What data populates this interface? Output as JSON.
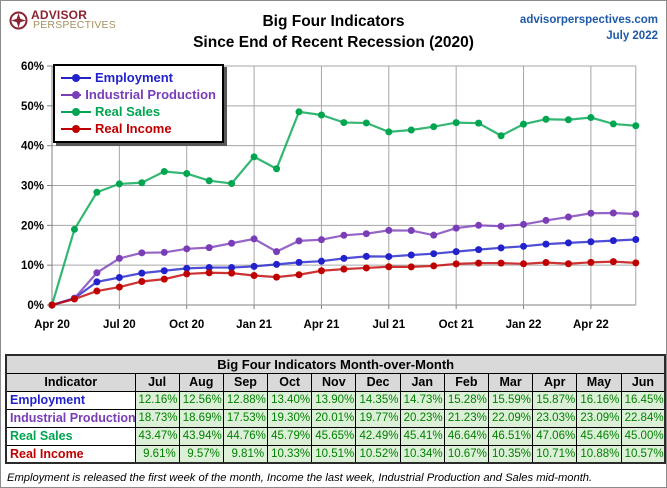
{
  "header": {
    "logo_line1": "ADVISOR",
    "logo_line2": "PERSPECTIVES",
    "logo_color1": "#8c2332",
    "logo_color2": "#a5925f",
    "title_line1": "Big Four Indicators",
    "title_line2": "Since End of Recent Recession (2020)",
    "site": "advisorperspectives.com",
    "date": "July 2022",
    "site_color": "#1f5aa8"
  },
  "chart_data": {
    "type": "line",
    "title": "Big Four Indicators Since End of Recent Recession (2020)",
    "grid": true,
    "legend_position": "top-left",
    "ylim": [
      0,
      60
    ],
    "y_ticks": [
      "0%",
      "10%",
      "20%",
      "30%",
      "40%",
      "50%",
      "60%"
    ],
    "x_tick_labels": [
      "Apr 20",
      "Jul 20",
      "Oct 20",
      "Jan 21",
      "Apr 21",
      "Jul 21",
      "Oct 21",
      "Jan 22",
      "Apr 22"
    ],
    "x": [
      "Apr 20",
      "May 20",
      "Jun 20",
      "Jul 20",
      "Aug 20",
      "Sep 20",
      "Oct 20",
      "Nov 20",
      "Dec 20",
      "Jan 21",
      "Feb 21",
      "Mar 21",
      "Apr 21",
      "May 21",
      "Jun 21",
      "Jul 21",
      "Aug 21",
      "Sep 21",
      "Oct 21",
      "Nov 21",
      "Dec 21",
      "Jan 22",
      "Feb 22",
      "Mar 22",
      "Apr 22",
      "May 22",
      "Jun 22"
    ],
    "series": [
      {
        "name": "Employment",
        "color": "#2222cc",
        "values": [
          0,
          1.7,
          5.8,
          6.9,
          8.0,
          8.6,
          9.2,
          9.4,
          9.4,
          9.7,
          10.2,
          10.7,
          11.0,
          11.7,
          12.2,
          12.16,
          12.56,
          12.88,
          13.4,
          13.9,
          14.35,
          14.73,
          15.28,
          15.59,
          15.87,
          16.16,
          16.45
        ]
      },
      {
        "name": "Industrial Production",
        "color": "#7a3db8",
        "values": [
          0,
          1.7,
          8.1,
          11.7,
          13.1,
          13.2,
          14.1,
          14.4,
          15.5,
          16.6,
          13.4,
          16.1,
          16.4,
          17.5,
          17.9,
          18.73,
          18.69,
          17.53,
          19.3,
          20.01,
          19.77,
          20.23,
          21.23,
          22.09,
          23.03,
          23.09,
          22.84
        ]
      },
      {
        "name": "Real Sales",
        "color": "#00a550",
        "values": [
          0,
          19.0,
          28.3,
          30.4,
          30.7,
          33.5,
          33.0,
          31.2,
          30.5,
          37.2,
          34.2,
          48.5,
          47.7,
          45.8,
          45.7,
          43.47,
          43.94,
          44.76,
          45.79,
          45.65,
          42.49,
          45.41,
          46.64,
          46.51,
          47.06,
          45.46,
          45.0
        ]
      },
      {
        "name": "Real Income",
        "color": "#c00000",
        "values": [
          0,
          1.5,
          3.5,
          4.5,
          5.9,
          6.5,
          7.8,
          8.1,
          8.0,
          7.4,
          7.0,
          7.6,
          8.6,
          9.0,
          9.3,
          9.61,
          9.57,
          9.81,
          10.33,
          10.51,
          10.52,
          10.34,
          10.67,
          10.35,
          10.71,
          10.88,
          10.57
        ]
      }
    ]
  },
  "table": {
    "title": "Big Four Indicators Month-over-Month",
    "header_bg": "#d9d9d9",
    "value_bg": "#dcf0d8",
    "value_color": "#008000",
    "columns": [
      "Indicator",
      "Jul",
      "Aug",
      "Sep",
      "Oct",
      "Nov",
      "Dec",
      "Jan",
      "Feb",
      "Mar",
      "Apr",
      "May",
      "Jun"
    ],
    "rows": [
      {
        "label": "Employment",
        "color": "#2222cc",
        "values": [
          "12.16%",
          "12.56%",
          "12.88%",
          "13.40%",
          "13.90%",
          "14.35%",
          "14.73%",
          "15.28%",
          "15.59%",
          "15.87%",
          "16.16%",
          "16.45%"
        ]
      },
      {
        "label": "Industrial Production",
        "color": "#7a3db8",
        "values": [
          "18.73%",
          "18.69%",
          "17.53%",
          "19.30%",
          "20.01%",
          "19.77%",
          "20.23%",
          "21.23%",
          "22.09%",
          "23.03%",
          "23.09%",
          "22.84%"
        ]
      },
      {
        "label": "Real Sales",
        "color": "#00a550",
        "values": [
          "43.47%",
          "43.94%",
          "44.76%",
          "45.79%",
          "45.65%",
          "42.49%",
          "45.41%",
          "46.64%",
          "46.51%",
          "47.06%",
          "45.46%",
          "45.00%"
        ]
      },
      {
        "label": "Real Income",
        "color": "#c00000",
        "values": [
          "9.61%",
          "9.57%",
          "9.81%",
          "10.33%",
          "10.51%",
          "10.52%",
          "10.34%",
          "10.67%",
          "10.35%",
          "10.71%",
          "10.88%",
          "10.57%"
        ]
      }
    ]
  },
  "footnote": "Employment is released the first week of the month, Income the last week, Industrial Production and Sales mid-month."
}
